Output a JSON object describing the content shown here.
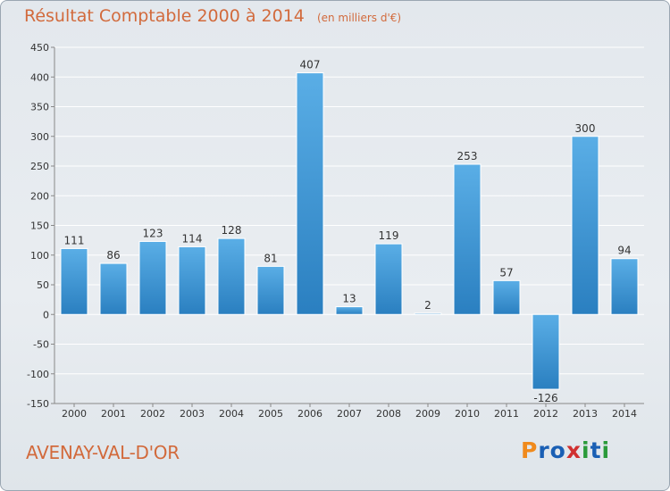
{
  "header": {
    "title": "Résultat Comptable 2000 à 2014",
    "subtitle": "(en milliers d'€)"
  },
  "footer": {
    "place": "AVENAY-VAL-D'OR",
    "brand": "Proxiti",
    "brand_letters": [
      "P",
      "r",
      "o",
      "x",
      "i",
      "t",
      "i"
    ],
    "brand_colors": [
      "#f08a1c",
      "#1a5fb4",
      "#1a5fb4",
      "#d03030",
      "#2a9a3a",
      "#1a5fb4",
      "#2a9a3a"
    ]
  },
  "colors": {
    "bar_top": "#5aaee6",
    "bar_bottom": "#2a7fc0",
    "grid": "#ffffff",
    "axis_text": "#333333",
    "title": "#d26a3c"
  },
  "chart_data": {
    "type": "bar",
    "title": "Résultat Comptable 2000 à 2014",
    "subtitle": "(en milliers d'€)",
    "categories": [
      "2000",
      "2001",
      "2002",
      "2003",
      "2004",
      "2005",
      "2006",
      "2007",
      "2008",
      "2009",
      "2010",
      "2011",
      "2012",
      "2013",
      "2014"
    ],
    "values": [
      111,
      86,
      123,
      114,
      128,
      81,
      407,
      13,
      119,
      2,
      253,
      57,
      -126,
      300,
      94
    ],
    "value_labels": [
      "111",
      "86",
      "123",
      "114",
      "128",
      "81",
      "407",
      "13",
      "119",
      "2",
      "253",
      "57",
      "-126",
      "300",
      "94"
    ],
    "ylim": [
      -150,
      450
    ],
    "yticks": [
      -150,
      -100,
      -50,
      0,
      50,
      100,
      150,
      200,
      250,
      300,
      350,
      400,
      450
    ],
    "grid": true,
    "xlabel": "",
    "ylabel": ""
  }
}
